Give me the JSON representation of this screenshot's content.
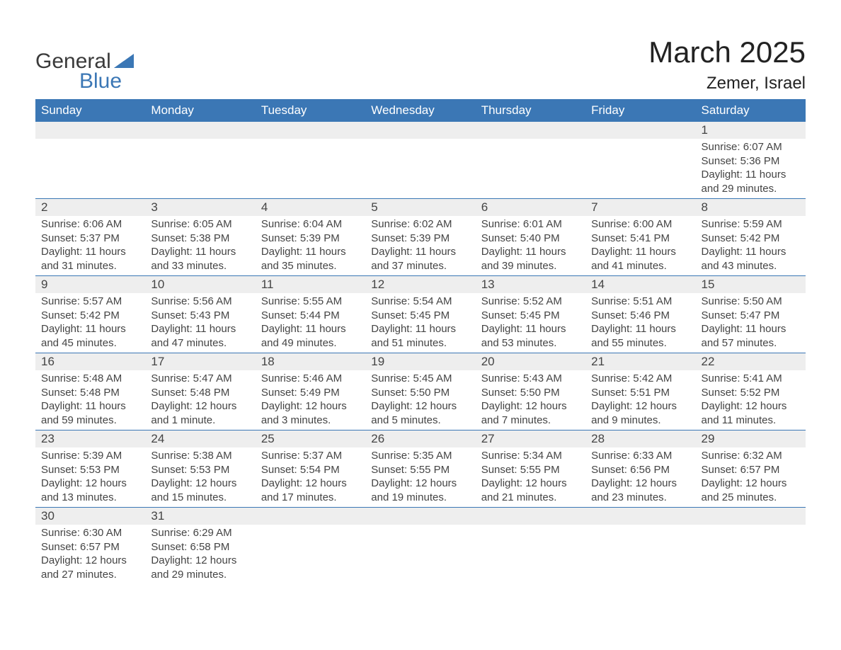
{
  "logo": {
    "text_general": "General",
    "text_blue": "Blue",
    "shape_color": "#3b77b5"
  },
  "header": {
    "month_title": "March 2025",
    "location": "Zemer, Israel"
  },
  "colors": {
    "header_bg": "#3b77b5",
    "header_text": "#ffffff",
    "stripe_bg": "#eeeeee",
    "row_border": "#3b77b5",
    "text": "#444444",
    "page_bg": "#ffffff"
  },
  "typography": {
    "title_fontsize": 42,
    "location_fontsize": 24,
    "day_header_fontsize": 17,
    "day_num_fontsize": 17,
    "detail_fontsize": 15
  },
  "calendar": {
    "type": "table",
    "columns": [
      "Sunday",
      "Monday",
      "Tuesday",
      "Wednesday",
      "Thursday",
      "Friday",
      "Saturday"
    ],
    "weeks": [
      [
        null,
        null,
        null,
        null,
        null,
        null,
        {
          "day": "1",
          "sunrise": "Sunrise: 6:07 AM",
          "sunset": "Sunset: 5:36 PM",
          "d1": "Daylight: 11 hours",
          "d2": "and 29 minutes."
        }
      ],
      [
        {
          "day": "2",
          "sunrise": "Sunrise: 6:06 AM",
          "sunset": "Sunset: 5:37 PM",
          "d1": "Daylight: 11 hours",
          "d2": "and 31 minutes."
        },
        {
          "day": "3",
          "sunrise": "Sunrise: 6:05 AM",
          "sunset": "Sunset: 5:38 PM",
          "d1": "Daylight: 11 hours",
          "d2": "and 33 minutes."
        },
        {
          "day": "4",
          "sunrise": "Sunrise: 6:04 AM",
          "sunset": "Sunset: 5:39 PM",
          "d1": "Daylight: 11 hours",
          "d2": "and 35 minutes."
        },
        {
          "day": "5",
          "sunrise": "Sunrise: 6:02 AM",
          "sunset": "Sunset: 5:39 PM",
          "d1": "Daylight: 11 hours",
          "d2": "and 37 minutes."
        },
        {
          "day": "6",
          "sunrise": "Sunrise: 6:01 AM",
          "sunset": "Sunset: 5:40 PM",
          "d1": "Daylight: 11 hours",
          "d2": "and 39 minutes."
        },
        {
          "day": "7",
          "sunrise": "Sunrise: 6:00 AM",
          "sunset": "Sunset: 5:41 PM",
          "d1": "Daylight: 11 hours",
          "d2": "and 41 minutes."
        },
        {
          "day": "8",
          "sunrise": "Sunrise: 5:59 AM",
          "sunset": "Sunset: 5:42 PM",
          "d1": "Daylight: 11 hours",
          "d2": "and 43 minutes."
        }
      ],
      [
        {
          "day": "9",
          "sunrise": "Sunrise: 5:57 AM",
          "sunset": "Sunset: 5:42 PM",
          "d1": "Daylight: 11 hours",
          "d2": "and 45 minutes."
        },
        {
          "day": "10",
          "sunrise": "Sunrise: 5:56 AM",
          "sunset": "Sunset: 5:43 PM",
          "d1": "Daylight: 11 hours",
          "d2": "and 47 minutes."
        },
        {
          "day": "11",
          "sunrise": "Sunrise: 5:55 AM",
          "sunset": "Sunset: 5:44 PM",
          "d1": "Daylight: 11 hours",
          "d2": "and 49 minutes."
        },
        {
          "day": "12",
          "sunrise": "Sunrise: 5:54 AM",
          "sunset": "Sunset: 5:45 PM",
          "d1": "Daylight: 11 hours",
          "d2": "and 51 minutes."
        },
        {
          "day": "13",
          "sunrise": "Sunrise: 5:52 AM",
          "sunset": "Sunset: 5:45 PM",
          "d1": "Daylight: 11 hours",
          "d2": "and 53 minutes."
        },
        {
          "day": "14",
          "sunrise": "Sunrise: 5:51 AM",
          "sunset": "Sunset: 5:46 PM",
          "d1": "Daylight: 11 hours",
          "d2": "and 55 minutes."
        },
        {
          "day": "15",
          "sunrise": "Sunrise: 5:50 AM",
          "sunset": "Sunset: 5:47 PM",
          "d1": "Daylight: 11 hours",
          "d2": "and 57 minutes."
        }
      ],
      [
        {
          "day": "16",
          "sunrise": "Sunrise: 5:48 AM",
          "sunset": "Sunset: 5:48 PM",
          "d1": "Daylight: 11 hours",
          "d2": "and 59 minutes."
        },
        {
          "day": "17",
          "sunrise": "Sunrise: 5:47 AM",
          "sunset": "Sunset: 5:48 PM",
          "d1": "Daylight: 12 hours",
          "d2": "and 1 minute."
        },
        {
          "day": "18",
          "sunrise": "Sunrise: 5:46 AM",
          "sunset": "Sunset: 5:49 PM",
          "d1": "Daylight: 12 hours",
          "d2": "and 3 minutes."
        },
        {
          "day": "19",
          "sunrise": "Sunrise: 5:45 AM",
          "sunset": "Sunset: 5:50 PM",
          "d1": "Daylight: 12 hours",
          "d2": "and 5 minutes."
        },
        {
          "day": "20",
          "sunrise": "Sunrise: 5:43 AM",
          "sunset": "Sunset: 5:50 PM",
          "d1": "Daylight: 12 hours",
          "d2": "and 7 minutes."
        },
        {
          "day": "21",
          "sunrise": "Sunrise: 5:42 AM",
          "sunset": "Sunset: 5:51 PM",
          "d1": "Daylight: 12 hours",
          "d2": "and 9 minutes."
        },
        {
          "day": "22",
          "sunrise": "Sunrise: 5:41 AM",
          "sunset": "Sunset: 5:52 PM",
          "d1": "Daylight: 12 hours",
          "d2": "and 11 minutes."
        }
      ],
      [
        {
          "day": "23",
          "sunrise": "Sunrise: 5:39 AM",
          "sunset": "Sunset: 5:53 PM",
          "d1": "Daylight: 12 hours",
          "d2": "and 13 minutes."
        },
        {
          "day": "24",
          "sunrise": "Sunrise: 5:38 AM",
          "sunset": "Sunset: 5:53 PM",
          "d1": "Daylight: 12 hours",
          "d2": "and 15 minutes."
        },
        {
          "day": "25",
          "sunrise": "Sunrise: 5:37 AM",
          "sunset": "Sunset: 5:54 PM",
          "d1": "Daylight: 12 hours",
          "d2": "and 17 minutes."
        },
        {
          "day": "26",
          "sunrise": "Sunrise: 5:35 AM",
          "sunset": "Sunset: 5:55 PM",
          "d1": "Daylight: 12 hours",
          "d2": "and 19 minutes."
        },
        {
          "day": "27",
          "sunrise": "Sunrise: 5:34 AM",
          "sunset": "Sunset: 5:55 PM",
          "d1": "Daylight: 12 hours",
          "d2": "and 21 minutes."
        },
        {
          "day": "28",
          "sunrise": "Sunrise: 6:33 AM",
          "sunset": "Sunset: 6:56 PM",
          "d1": "Daylight: 12 hours",
          "d2": "and 23 minutes."
        },
        {
          "day": "29",
          "sunrise": "Sunrise: 6:32 AM",
          "sunset": "Sunset: 6:57 PM",
          "d1": "Daylight: 12 hours",
          "d2": "and 25 minutes."
        }
      ],
      [
        {
          "day": "30",
          "sunrise": "Sunrise: 6:30 AM",
          "sunset": "Sunset: 6:57 PM",
          "d1": "Daylight: 12 hours",
          "d2": "and 27 minutes."
        },
        {
          "day": "31",
          "sunrise": "Sunrise: 6:29 AM",
          "sunset": "Sunset: 6:58 PM",
          "d1": "Daylight: 12 hours",
          "d2": "and 29 minutes."
        },
        null,
        null,
        null,
        null,
        null
      ]
    ]
  }
}
